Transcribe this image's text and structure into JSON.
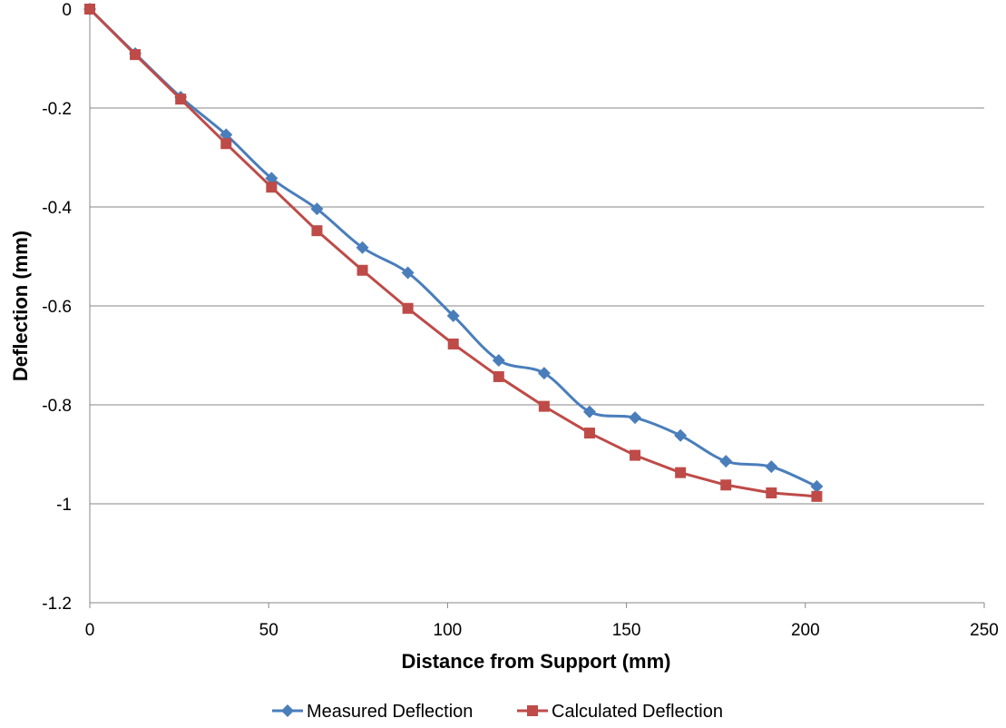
{
  "chart_data": {
    "type": "line",
    "title": "",
    "xlabel": "Distance from Support (mm)",
    "ylabel": "Deflection (mm)",
    "xlim": [
      0,
      250
    ],
    "ylim": [
      -1.2,
      0
    ],
    "x_ticks": [
      "0",
      "50",
      "100",
      "150",
      "200",
      "250"
    ],
    "y_ticks": [
      "0",
      "-0.2",
      "-0.4",
      "-0.6",
      "-0.8",
      "-1",
      "-1.2"
    ],
    "grid": "horizontal",
    "legend_position": "bottom",
    "series": [
      {
        "name": "Measured Deflection",
        "color": "#4a7ebb",
        "marker": "diamond",
        "smooth": true,
        "x": [
          0,
          12.7,
          25.4,
          38.1,
          50.8,
          63.5,
          76.2,
          88.9,
          101.6,
          114.3,
          127,
          139.7,
          152.4,
          165.1,
          177.8,
          190.5,
          203.2
        ],
        "y": [
          0,
          -0.09,
          -0.178,
          -0.254,
          -0.342,
          -0.404,
          -0.482,
          -0.533,
          -0.62,
          -0.71,
          -0.736,
          -0.814,
          -0.826,
          -0.862,
          -0.914,
          -0.925,
          -0.965
        ]
      },
      {
        "name": "Calculated Deflection",
        "color": "#be4b48",
        "marker": "square",
        "smooth": false,
        "x": [
          0,
          12.7,
          25.4,
          38.1,
          50.8,
          63.5,
          76.2,
          88.9,
          101.6,
          114.3,
          127,
          139.7,
          152.4,
          165.1,
          177.8,
          190.5,
          203.2
        ],
        "y": [
          0,
          -0.092,
          -0.182,
          -0.272,
          -0.36,
          -0.448,
          -0.528,
          -0.605,
          -0.677,
          -0.743,
          -0.803,
          -0.857,
          -0.902,
          -0.937,
          -0.962,
          -0.978,
          -0.985
        ]
      }
    ]
  }
}
